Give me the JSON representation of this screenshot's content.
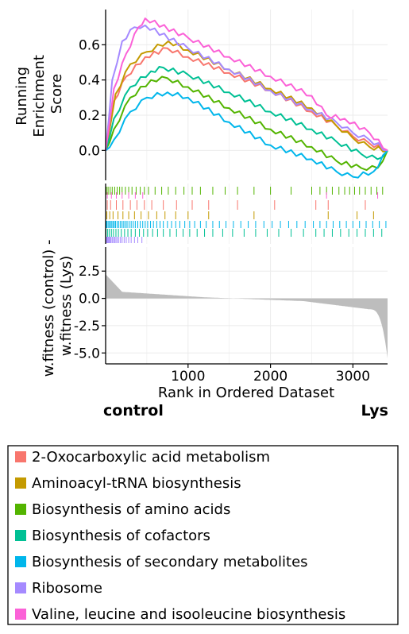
{
  "chart_data": {
    "type": "line",
    "variant": "GSEA enrichment plot",
    "es_panel": {
      "ylabel": "Running\nEnrichment\nScore",
      "yticks": [
        0.0,
        0.2,
        0.4,
        0.6
      ],
      "ytick_labels": [
        "0.0",
        "0.2",
        "0.4",
        "0.6"
      ],
      "ylim": [
        -0.17,
        0.8
      ],
      "grid": true
    },
    "metric_panel": {
      "ylabel": "w.fitness (control) -\nw.fitness (Lys)",
      "yticks": [
        2.5,
        0.0,
        -2.5,
        -5.0
      ],
      "ytick_labels": [
        "2.5",
        "0.0",
        "-2.5",
        "-5.0"
      ],
      "ylim": [
        -6.0,
        4.7
      ],
      "grid": true
    },
    "x": {
      "label": "Rank in Ordered Dataset",
      "ticks": [
        1000,
        2000,
        3000
      ],
      "tick_labels": [
        "1000",
        "2000",
        "3000"
      ],
      "xlim": [
        0,
        3420
      ]
    },
    "phenotype_left": "control",
    "phenotype_right": "Lys",
    "legend_position": "bottom",
    "series": [
      {
        "name": "2-Oxocarboxylic acid metabolism",
        "color": "#F8766D",
        "points": [
          [
            0,
            0
          ],
          [
            100,
            0.28
          ],
          [
            250,
            0.42
          ],
          [
            480,
            0.53
          ],
          [
            750,
            0.58
          ],
          [
            1000,
            0.53
          ],
          [
            1500,
            0.44
          ],
          [
            2000,
            0.34
          ],
          [
            2500,
            0.22
          ],
          [
            2800,
            0.14
          ],
          [
            3000,
            0.08
          ],
          [
            3200,
            0.04
          ],
          [
            3420,
            0
          ]
        ]
      },
      {
        "name": "Aminoacyl-tRNA biosynthesis",
        "color": "#C49A00",
        "points": [
          [
            0,
            0
          ],
          [
            120,
            0.32
          ],
          [
            300,
            0.49
          ],
          [
            500,
            0.56
          ],
          [
            760,
            0.62
          ],
          [
            1000,
            0.57
          ],
          [
            1500,
            0.46
          ],
          [
            2000,
            0.35
          ],
          [
            2500,
            0.24
          ],
          [
            2800,
            0.14
          ],
          [
            3000,
            0.07
          ],
          [
            3200,
            0.02
          ],
          [
            3420,
            0
          ]
        ]
      },
      {
        "name": "Biosynthesis of amino acids",
        "color": "#53B400",
        "points": [
          [
            0,
            0
          ],
          [
            100,
            0.12
          ],
          [
            300,
            0.3
          ],
          [
            550,
            0.4
          ],
          [
            750,
            0.41
          ],
          [
            1000,
            0.36
          ],
          [
            1500,
            0.24
          ],
          [
            2000,
            0.12
          ],
          [
            2500,
            0.02
          ],
          [
            2800,
            -0.06
          ],
          [
            3100,
            -0.1
          ],
          [
            3300,
            -0.1
          ],
          [
            3420,
            0
          ]
        ]
      },
      {
        "name": "Biosynthesis of cofactors",
        "color": "#00C094",
        "points": [
          [
            0,
            0
          ],
          [
            100,
            0.18
          ],
          [
            300,
            0.36
          ],
          [
            550,
            0.45
          ],
          [
            700,
            0.47
          ],
          [
            1000,
            0.43
          ],
          [
            1500,
            0.33
          ],
          [
            2000,
            0.22
          ],
          [
            2500,
            0.12
          ],
          [
            2800,
            0.05
          ],
          [
            3100,
            -0.02
          ],
          [
            3300,
            -0.05
          ],
          [
            3420,
            0
          ]
        ]
      },
      {
        "name": "Biosynthesis of secondary metabolites",
        "color": "#00B6EB",
        "points": [
          [
            0,
            0
          ],
          [
            100,
            0.06
          ],
          [
            300,
            0.22
          ],
          [
            500,
            0.3
          ],
          [
            750,
            0.33
          ],
          [
            1000,
            0.3
          ],
          [
            1500,
            0.16
          ],
          [
            2000,
            0.03
          ],
          [
            2500,
            -0.05
          ],
          [
            2800,
            -0.12
          ],
          [
            3000,
            -0.15
          ],
          [
            3250,
            -0.12
          ],
          [
            3420,
            0
          ]
        ]
      },
      {
        "name": "Ribosome",
        "color": "#A58AFF",
        "points": [
          [
            0,
            0
          ],
          [
            80,
            0.4
          ],
          [
            200,
            0.62
          ],
          [
            350,
            0.7
          ],
          [
            480,
            0.71
          ],
          [
            1000,
            0.58
          ],
          [
            1500,
            0.46
          ],
          [
            2000,
            0.34
          ],
          [
            2500,
            0.23
          ],
          [
            2800,
            0.16
          ],
          [
            3000,
            0.1
          ],
          [
            3200,
            0.06
          ],
          [
            3420,
            0
          ]
        ]
      },
      {
        "name": "Valine, leucine and isooleucine biosynthesis",
        "color": "#FB61D7",
        "points": [
          [
            0,
            0
          ],
          [
            100,
            0.35
          ],
          [
            250,
            0.55
          ],
          [
            400,
            0.7
          ],
          [
            480,
            0.75
          ],
          [
            1000,
            0.64
          ],
          [
            1500,
            0.53
          ],
          [
            2000,
            0.42
          ],
          [
            2500,
            0.31
          ],
          [
            2680,
            0.2
          ],
          [
            2900,
            0.18
          ],
          [
            3200,
            0.1
          ],
          [
            3420,
            0
          ]
        ]
      }
    ],
    "hit_ranks": {
      "2-Oxocarboxylic acid metabolism": [
        20,
        60,
        130,
        210,
        300,
        380,
        470,
        560,
        700,
        860,
        1050,
        1250,
        1600,
        2050,
        2550,
        2700,
        3150
      ],
      "Aminoacyl-tRNA biosynthesis": [
        15,
        50,
        90,
        150,
        210,
        280,
        350,
        430,
        520,
        620,
        720,
        850,
        1000,
        1250,
        1800,
        2700,
        3050,
        3250
      ],
      "Biosynthesis of amino acids": [
        10,
        30,
        55,
        80,
        110,
        140,
        170,
        200,
        240,
        280,
        320,
        370,
        420,
        470,
        520,
        600,
        680,
        760,
        850,
        950,
        1050,
        1150,
        1300,
        1450,
        1600,
        1800,
        2000,
        2250,
        2500,
        2600,
        2680,
        2750,
        2830,
        2900,
        2960,
        3020,
        3080,
        3150,
        3220,
        3290,
        3360
      ],
      "Biosynthesis of cofactors": [
        5,
        25,
        45,
        70,
        95,
        125,
        155,
        190,
        230,
        270,
        310,
        360,
        410,
        460,
        510,
        570,
        630,
        700,
        780,
        860,
        940,
        1020,
        1110,
        1200,
        1300,
        1420,
        1540,
        1680,
        1820,
        1960,
        2100,
        2250,
        2400,
        2550,
        2650,
        2750,
        2850,
        2950,
        3050,
        3150,
        3250,
        3350
      ],
      "Biosynthesis of secondary metabolites": [
        5,
        15,
        30,
        45,
        60,
        75,
        90,
        105,
        120,
        140,
        160,
        180,
        200,
        220,
        240,
        260,
        285,
        310,
        335,
        360,
        390,
        420,
        450,
        480,
        510,
        545,
        580,
        620,
        660,
        700,
        750,
        800,
        850,
        900,
        960,
        1020,
        1080,
        1150,
        1220,
        1300,
        1380,
        1460,
        1550,
        1640,
        1730,
        1820,
        1920,
        2020,
        2120,
        2220,
        2320,
        2420,
        2520,
        2600,
        2680,
        2760,
        2840,
        2920,
        3000,
        3080,
        3160,
        3240,
        3320,
        3400
      ],
      "Ribosome": [
        5,
        15,
        25,
        35,
        45,
        55,
        65,
        80,
        95,
        110,
        125,
        140,
        160,
        180,
        200,
        225,
        250,
        280,
        310,
        350,
        390,
        440
      ],
      "Valine, leucine and isooleucine biosynthesis": [
        20,
        70,
        130,
        200,
        280,
        360,
        450,
        2680,
        3300
      ]
    }
  }
}
